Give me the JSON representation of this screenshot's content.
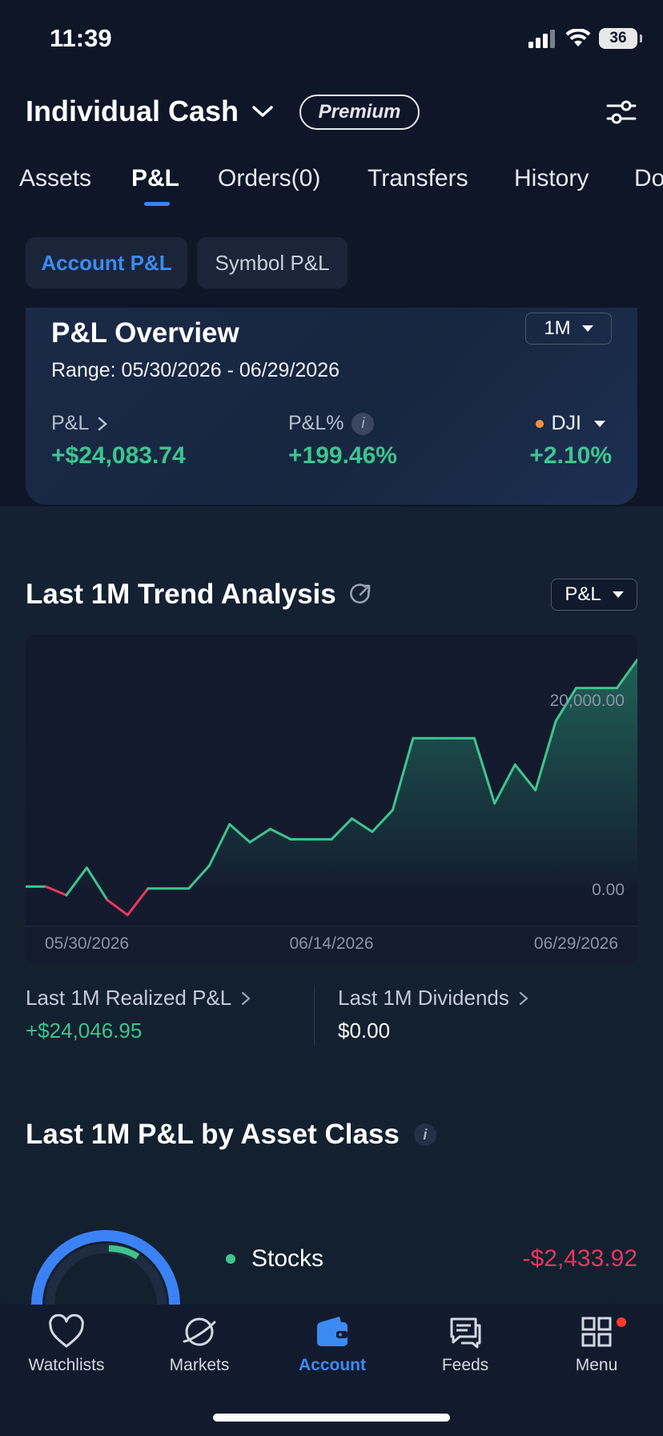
{
  "status_bar": {
    "time": "11:39",
    "battery": "36"
  },
  "header": {
    "account_name": "Individual Cash",
    "badge": "Premium"
  },
  "tabs": [
    {
      "label": "Assets"
    },
    {
      "label": "P&L"
    },
    {
      "label": "Orders(0)"
    },
    {
      "label": "Transfers"
    },
    {
      "label": "History"
    },
    {
      "label": "Do"
    }
  ],
  "segments": {
    "account": "Account P&L",
    "symbol": "Symbol P&L"
  },
  "overview": {
    "title": "P&L Overview",
    "range": "Range: 05/30/2026 - 06/29/2026",
    "period": "1M",
    "pl_label": "P&L",
    "pl_value": "+$24,083.74",
    "plpct_label": "P&L%",
    "plpct_value": "+199.46%",
    "bench_label": "DJI",
    "bench_value": "+2.10%",
    "colors": {
      "positive": "#3dc58e",
      "negative": "#e8365f",
      "accent": "#3b8bf2"
    }
  },
  "trend": {
    "title": "Last 1M Trend Analysis",
    "metric": "P&L"
  },
  "chart_data": {
    "type": "line",
    "x_ticks": [
      "05/30/2026",
      "06/14/2026",
      "06/29/2026"
    ],
    "y_ticks": [
      "20,000.00",
      "0.00"
    ],
    "ylim": [
      -4000,
      26000
    ],
    "x": [
      "05/30",
      "05/31",
      "06/01",
      "06/02",
      "06/03",
      "06/04",
      "06/05",
      "06/06",
      "06/07",
      "06/08",
      "06/09",
      "06/10",
      "06/11",
      "06/12",
      "06/13",
      "06/14",
      "06/15",
      "06/16",
      "06/17",
      "06/18",
      "06/19",
      "06/20",
      "06/21",
      "06/22",
      "06/23",
      "06/24",
      "06/25",
      "06/26",
      "06/27",
      "06/28",
      "06/29"
    ],
    "series": [
      {
        "values": [
          200,
          200,
          -700,
          2200,
          -1200,
          -2800,
          0,
          0,
          0,
          2400,
          6800,
          4900,
          6300,
          5200,
          5200,
          5200,
          7400,
          6000,
          8300,
          15900,
          15900,
          15900,
          15900,
          9000,
          13100,
          10400,
          17700,
          21200,
          21200,
          21200,
          24200
        ],
        "line_color": "#3dc58e",
        "negative_color": "#e8365f"
      }
    ],
    "grid": false,
    "legend": "none"
  },
  "stats": {
    "realized_label": "Last 1M Realized P&L",
    "realized_value": "+$24,046.95",
    "dividends_label": "Last 1M Dividends",
    "dividends_value": "$0.00"
  },
  "asset_class": {
    "title": "Last 1M P&L by Asset Class",
    "rows": [
      {
        "name": "Stocks",
        "value": "-$2,433.92"
      }
    ]
  },
  "bottom_nav": [
    {
      "label": "Watchlists",
      "icon": "heart-icon"
    },
    {
      "label": "Markets",
      "icon": "planet-icon"
    },
    {
      "label": "Account",
      "icon": "wallet-icon"
    },
    {
      "label": "Feeds",
      "icon": "chat-icon"
    },
    {
      "label": "Menu",
      "icon": "grid-icon"
    }
  ]
}
